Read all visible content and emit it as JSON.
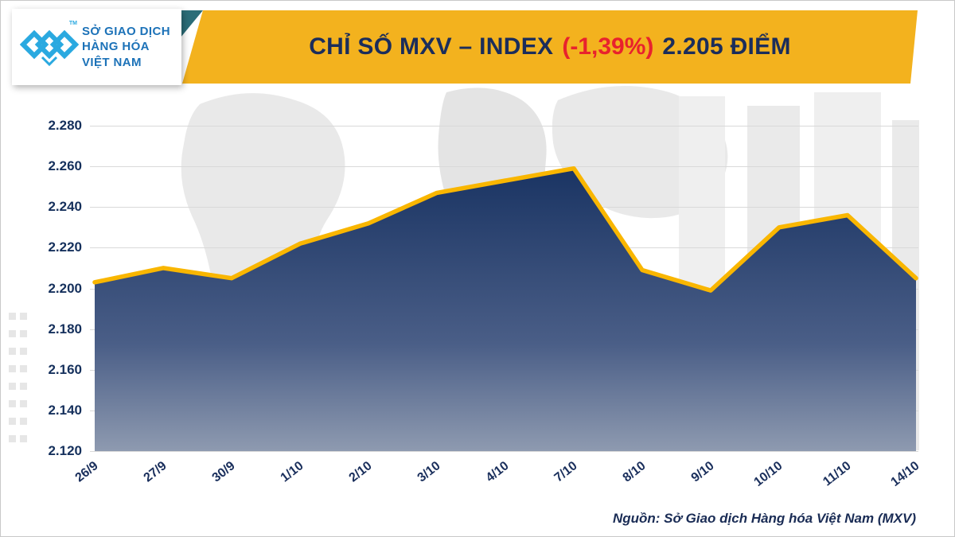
{
  "header": {
    "title_main": "CHỈ SỐ MXV – INDEX",
    "title_change": "(-1,39%)",
    "title_value": "2.205 ĐIỂM",
    "banner_color": "#f3b21e",
    "title_color": "#1b2d5b",
    "change_color": "#e8222d"
  },
  "logo": {
    "line1": "SỞ GIAO DỊCH",
    "line2": "HÀNG HÓA",
    "line3": "VIỆT NAM",
    "tm": "TM",
    "brand_color": "#2aa9e0"
  },
  "footer": {
    "source": "Nguồn: Sở Giao dịch Hàng hóa Việt Nam (MXV)"
  },
  "chart_data": {
    "type": "area",
    "title": "CHỈ SỐ MXV – INDEX (-1,39%) 2.205 ĐIỂM",
    "categories": [
      "26/9",
      "27/9",
      "30/9",
      "1/10",
      "2/10",
      "3/10",
      "4/10",
      "7/10",
      "8/10",
      "9/10",
      "10/10",
      "11/10",
      "14/10"
    ],
    "values": [
      2203,
      2210,
      2205,
      2222,
      2232,
      2247,
      2253,
      2259,
      2209,
      2199,
      2230,
      2236,
      2205
    ],
    "xlabel": "",
    "ylabel": "",
    "ylim": [
      2120,
      2280
    ],
    "ytick_step": 20,
    "ytick_labels": [
      "2.280",
      "2.260",
      "2.240",
      "2.220",
      "2.200",
      "2.180",
      "2.160",
      "2.140",
      "2.120"
    ],
    "grid": true,
    "legend": "none",
    "line_color": "#f9b600",
    "area_top_color": "#1a3463",
    "area_mid_color": "#4a5e87",
    "area_bottom_color": "#8e9ab0"
  }
}
